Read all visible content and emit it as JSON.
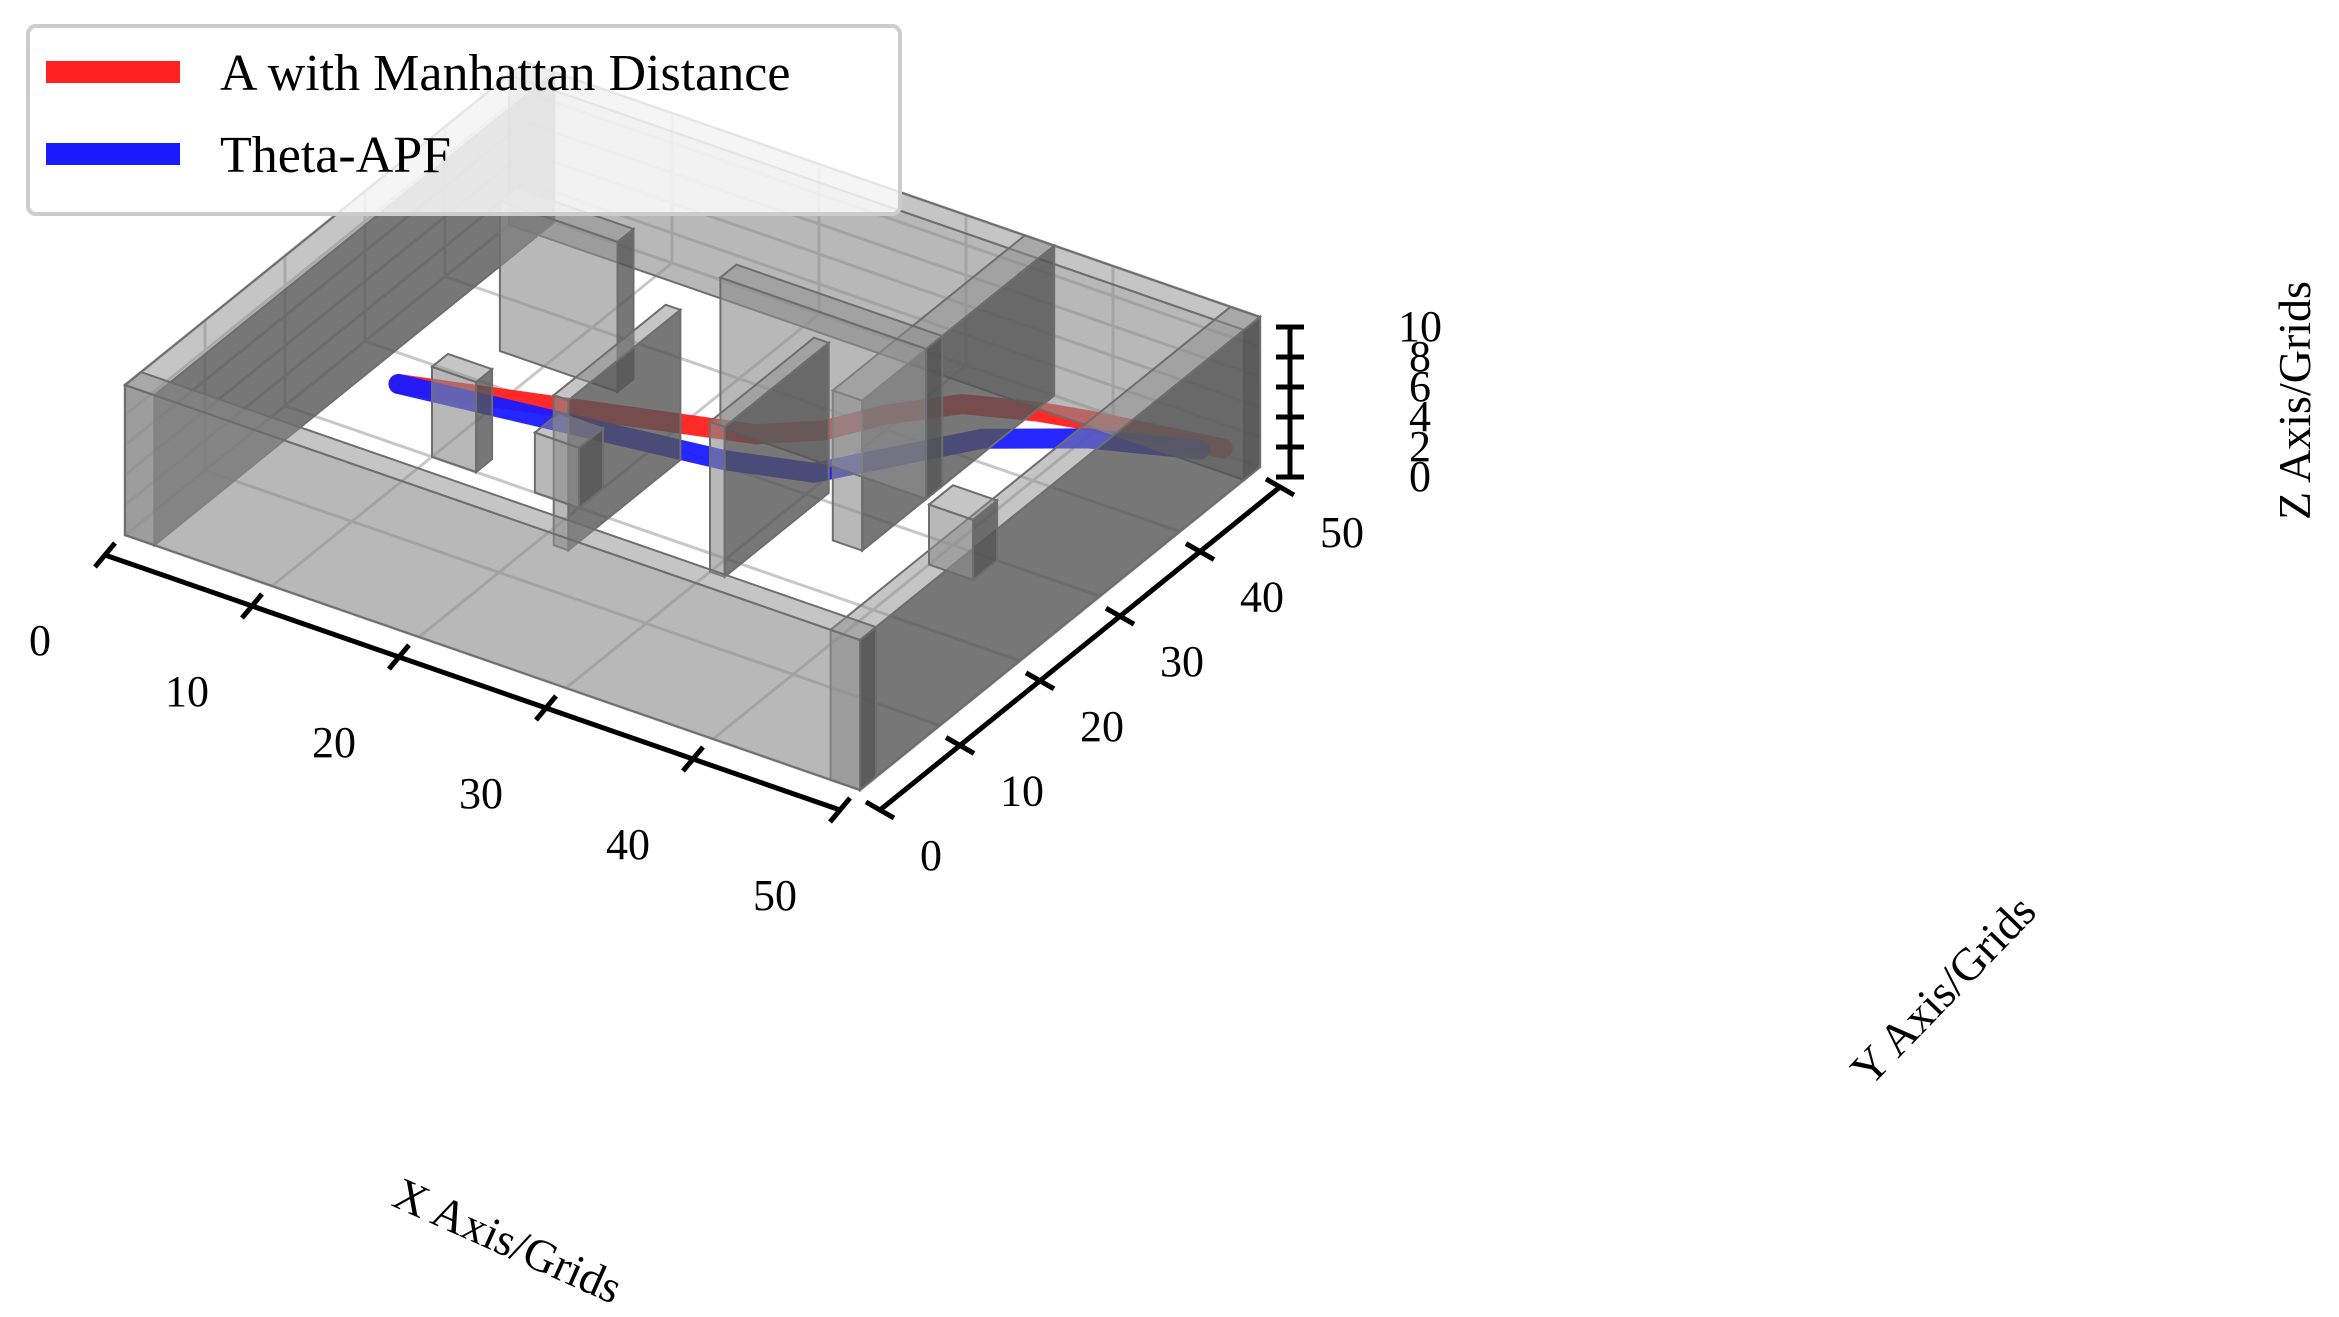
{
  "chart_data": {
    "type": "line",
    "projection": "3d",
    "xlabel": "X Axis/Grids",
    "ylabel": "Y Axis/Grids",
    "zlabel": "Z Axis/Grids",
    "xlim": [
      0,
      50
    ],
    "ylim": [
      0,
      50
    ],
    "zlim": [
      0,
      10
    ],
    "xticks": [
      "0",
      "10",
      "20",
      "30",
      "40",
      "50"
    ],
    "yticks": [
      "0",
      "10",
      "20",
      "30",
      "40",
      "50"
    ],
    "zticks": [
      "0",
      "2",
      "4",
      "6",
      "8",
      "10"
    ],
    "grid": true,
    "legend_position": "top-left",
    "series": [
      {
        "name": "A with Manhattan Distance",
        "color": "#ff2020",
        "points": [
          [
            5,
            25,
            1
          ],
          [
            10,
            27,
            1
          ],
          [
            15,
            29,
            1
          ],
          [
            20,
            31,
            1
          ],
          [
            25,
            33,
            1
          ],
          [
            28,
            36,
            1
          ],
          [
            30,
            40,
            1
          ],
          [
            33,
            44,
            1
          ],
          [
            37,
            46,
            1
          ],
          [
            40,
            47,
            1
          ],
          [
            44,
            48,
            1
          ],
          [
            48,
            49,
            1
          ]
        ]
      },
      {
        "name": "Theta-APF",
        "color": "#1a1aff",
        "points": [
          [
            5,
            25,
            1
          ],
          [
            15,
            27,
            1
          ],
          [
            25,
            29,
            1
          ],
          [
            30,
            31,
            1
          ],
          [
            33,
            36,
            1
          ],
          [
            36,
            41,
            1
          ],
          [
            41,
            45,
            1
          ],
          [
            47,
            48,
            1
          ]
        ]
      }
    ],
    "obstacle_color": "#8c8c8c"
  }
}
